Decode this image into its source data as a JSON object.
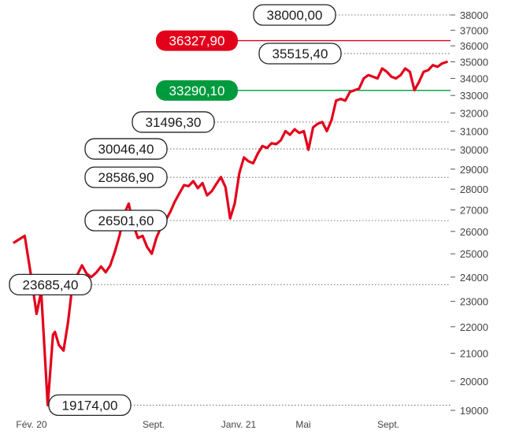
{
  "chart_data": {
    "type": "line",
    "title": "",
    "xlabel": "",
    "ylabel": "",
    "x_ticks": [
      "Fév. 20",
      "Sept.",
      "Janv. 21",
      "Mai",
      "Sept."
    ],
    "y_ticks": [
      19000,
      20000,
      21000,
      22000,
      23000,
      24000,
      25000,
      26000,
      27000,
      28000,
      29000,
      30000,
      31000,
      32000,
      33000,
      34000,
      35000,
      36000,
      37000,
      38000
    ],
    "y_scale": "log",
    "ylim": [
      19000,
      38500
    ],
    "xlim": [
      "2020-02-01",
      "2021-11-20"
    ],
    "grid": false,
    "line_color": "#e3001b",
    "series": [
      {
        "name": "",
        "points": [
          [
            "2020-02-01",
            25500
          ],
          [
            "2020-02-17",
            25800
          ],
          [
            "2020-02-28",
            23800
          ],
          [
            "2020-03-06",
            22500
          ],
          [
            "2020-03-13",
            23400
          ],
          [
            "2020-03-23",
            19174
          ],
          [
            "2020-03-31",
            21700
          ],
          [
            "2020-04-03",
            21800
          ],
          [
            "2020-04-09",
            21300
          ],
          [
            "2020-04-16",
            21100
          ],
          [
            "2020-04-23",
            22200
          ],
          [
            "2020-04-30",
            23800
          ],
          [
            "2020-05-07",
            24100
          ],
          [
            "2020-05-14",
            24500
          ],
          [
            "2020-05-21",
            24150
          ],
          [
            "2020-05-28",
            24000
          ],
          [
            "2020-06-05",
            24200
          ],
          [
            "2020-06-12",
            24450
          ],
          [
            "2020-06-19",
            24200
          ],
          [
            "2020-06-26",
            24500
          ],
          [
            "2020-07-03",
            25100
          ],
          [
            "2020-07-10",
            25800
          ],
          [
            "2020-07-17",
            26800
          ],
          [
            "2020-07-24",
            27300
          ],
          [
            "2020-07-31",
            26300
          ],
          [
            "2020-08-07",
            25700
          ],
          [
            "2020-08-14",
            25800
          ],
          [
            "2020-08-21",
            25300
          ],
          [
            "2020-08-28",
            25000
          ],
          [
            "2020-09-04",
            25700
          ],
          [
            "2020-09-11",
            26200
          ],
          [
            "2020-09-18",
            26500
          ],
          [
            "2020-09-25",
            26900
          ],
          [
            "2020-10-02",
            27400
          ],
          [
            "2020-10-09",
            27800
          ],
          [
            "2020-10-16",
            28200
          ],
          [
            "2020-10-23",
            28150
          ],
          [
            "2020-10-30",
            28400
          ],
          [
            "2020-11-06",
            28050
          ],
          [
            "2020-11-13",
            28300
          ],
          [
            "2020-11-20",
            27700
          ],
          [
            "2020-11-27",
            27900
          ],
          [
            "2020-12-04",
            28250
          ],
          [
            "2020-12-11",
            28600
          ],
          [
            "2020-12-18",
            28100
          ],
          [
            "2020-12-25",
            26600
          ],
          [
            "2021-01-01",
            27300
          ],
          [
            "2021-01-08",
            28800
          ],
          [
            "2021-01-15",
            29600
          ],
          [
            "2021-01-22",
            29400
          ],
          [
            "2021-01-29",
            29300
          ],
          [
            "2021-02-05",
            29800
          ],
          [
            "2021-02-12",
            30200
          ],
          [
            "2021-02-19",
            30100
          ],
          [
            "2021-02-26",
            30350
          ],
          [
            "2021-03-05",
            30300
          ],
          [
            "2021-03-12",
            30500
          ],
          [
            "2021-03-19",
            31000
          ],
          [
            "2021-03-26",
            30800
          ],
          [
            "2021-04-02",
            31100
          ],
          [
            "2021-04-09",
            30900
          ],
          [
            "2021-04-16",
            31000
          ],
          [
            "2021-04-23",
            30000
          ],
          [
            "2021-04-30",
            31200
          ],
          [
            "2021-05-07",
            31400
          ],
          [
            "2021-05-14",
            31500
          ],
          [
            "2021-05-21",
            31000
          ],
          [
            "2021-05-28",
            31600
          ],
          [
            "2021-06-04",
            32700
          ],
          [
            "2021-06-11",
            32800
          ],
          [
            "2021-06-18",
            32700
          ],
          [
            "2021-06-25",
            33200
          ],
          [
            "2021-07-02",
            33300
          ],
          [
            "2021-07-09",
            33400
          ],
          [
            "2021-07-16",
            34000
          ],
          [
            "2021-07-23",
            34200
          ],
          [
            "2021-07-30",
            34100
          ],
          [
            "2021-08-06",
            34000
          ],
          [
            "2021-08-13",
            34600
          ],
          [
            "2021-08-20",
            34400
          ],
          [
            "2021-08-27",
            34100
          ],
          [
            "2021-09-03",
            34000
          ],
          [
            "2021-09-10",
            34200
          ],
          [
            "2021-09-17",
            34600
          ],
          [
            "2021-09-24",
            34400
          ],
          [
            "2021-10-01",
            33300
          ],
          [
            "2021-10-08",
            33800
          ],
          [
            "2021-10-15",
            34400
          ],
          [
            "2021-10-22",
            34500
          ],
          [
            "2021-10-29",
            34800
          ],
          [
            "2021-11-05",
            34700
          ],
          [
            "2021-11-12",
            34900
          ],
          [
            "2021-11-19",
            35000
          ]
        ]
      }
    ],
    "callouts": [
      {
        "text": "38000,00",
        "value": 38000,
        "style": "plain"
      },
      {
        "text": "36327,90",
        "value": 36327.9,
        "style": "red"
      },
      {
        "text": "35515,40",
        "value": 35515.4,
        "style": "plain"
      },
      {
        "text": "33290,10",
        "value": 33290.1,
        "style": "green"
      },
      {
        "text": "31496,30",
        "value": 31496.3,
        "style": "plain"
      },
      {
        "text": "30046,40",
        "value": 30046.4,
        "style": "plain"
      },
      {
        "text": "28586,90",
        "value": 28586.9,
        "style": "plain"
      },
      {
        "text": "26501,60",
        "value": 26501.6,
        "style": "plain"
      },
      {
        "text": "23685,40",
        "value": 23685.4,
        "style": "plain"
      },
      {
        "text": "19174,00",
        "value": 19174,
        "style": "plain"
      }
    ],
    "colors": {
      "line": "#e3001b",
      "high": "#e3001b",
      "support": "#009a3e",
      "box_border": "#222222",
      "dotted": "#777777"
    }
  }
}
